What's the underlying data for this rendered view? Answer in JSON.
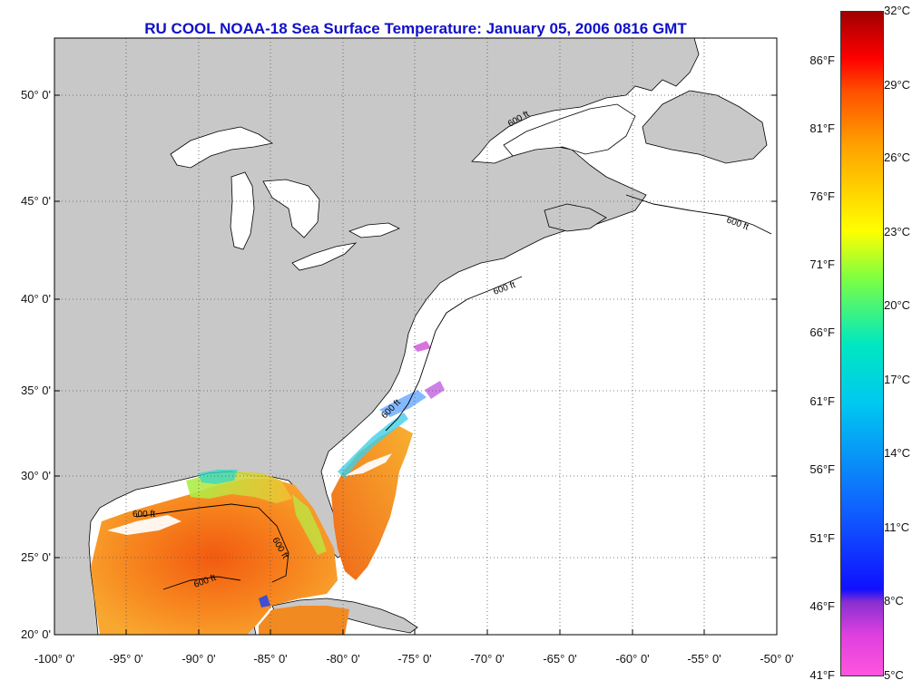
{
  "title": "RU COOL  NOAA-18  Sea Surface Temperature:  January 05, 2006 0816 GMT",
  "map": {
    "land_color": "#c8c8c8",
    "no_data_color": "#ffffff",
    "lat_labels": [
      "50° 0'",
      "45° 0'",
      "40° 0'",
      "35° 0'",
      "30° 0'",
      "25° 0'",
      "20° 0'"
    ],
    "lon_labels": [
      "-100° 0'",
      "-95° 0'",
      "-90° 0'",
      "-85° 0'",
      "-80° 0'",
      "-75° 0'",
      "-70° 0'",
      "-65° 0'",
      "-60° 0'",
      "-55° 0'",
      "-50° 0'"
    ],
    "contour_label": "600 ft"
  },
  "colorbar": {
    "fahrenheit_labels": [
      "86°F",
      "81°F",
      "76°F",
      "71°F",
      "66°F",
      "61°F",
      "56°F",
      "51°F",
      "46°F",
      "41°F"
    ],
    "celsius_labels": [
      "32°C",
      "29°C",
      "26°C",
      "23°C",
      "20°C",
      "17°C",
      "14°C",
      "11°C",
      "8°C",
      "5°C"
    ],
    "colors": [
      "#ff55dd",
      "#8a30d0",
      "#1010ff",
      "#00c8f0",
      "#80ff40",
      "#ffff00",
      "#ffa000",
      "#ff0000",
      "#a00000"
    ]
  }
}
